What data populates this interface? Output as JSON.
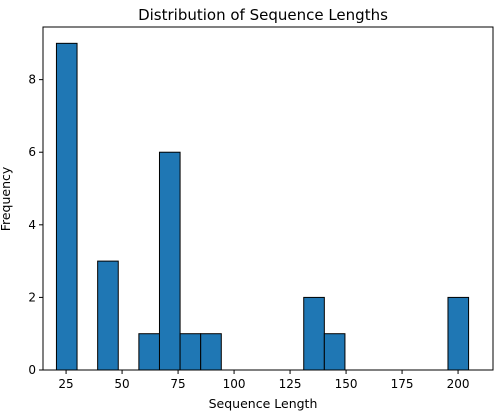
{
  "chart_data": {
    "type": "bar",
    "title": "Distribution of Sequence Lengths",
    "xlabel": "Sequence Length",
    "ylabel": "Frequency",
    "xlim": [
      14.7,
      215.6
    ],
    "ylim": [
      0,
      9.45
    ],
    "xticks": [
      25,
      50,
      75,
      100,
      125,
      150,
      175,
      200
    ],
    "yticks": [
      0,
      2,
      4,
      6,
      8
    ],
    "bin_width": 9.2,
    "bins": [
      {
        "start": 20.7,
        "count": 9
      },
      {
        "start": 39.1,
        "count": 3
      },
      {
        "start": 57.5,
        "count": 1
      },
      {
        "start": 66.7,
        "count": 6
      },
      {
        "start": 75.9,
        "count": 1
      },
      {
        "start": 85.1,
        "count": 1
      },
      {
        "start": 131.1,
        "count": 2
      },
      {
        "start": 140.3,
        "count": 1
      },
      {
        "start": 195.5,
        "count": 2
      }
    ],
    "bar_color": "#1f77b4",
    "edge_color": "#000000",
    "grid": false,
    "legend": "none"
  }
}
